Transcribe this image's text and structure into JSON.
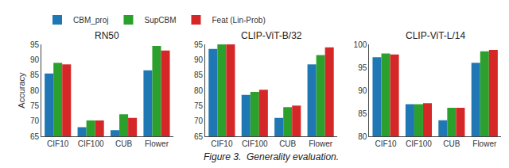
{
  "chart_data": [
    {
      "type": "bar",
      "title": "RN50",
      "categories": [
        "CIF10",
        "CIF100",
        "CUB",
        "Flower"
      ],
      "series": [
        {
          "name": "CBM_proj",
          "color": "#1f77b4",
          "values": [
            85.5,
            68.0,
            67.0,
            86.5
          ]
        },
        {
          "name": "SupCBM",
          "color": "#2ca02c",
          "values": [
            89.0,
            70.2,
            72.2,
            94.5
          ]
        },
        {
          "name": "Feat (Lin-Prob)",
          "color": "#d62728",
          "values": [
            88.5,
            70.2,
            71.0,
            93.0
          ]
        }
      ],
      "ylim": [
        65,
        95
      ],
      "yticks": [
        65,
        70,
        75,
        80,
        85,
        90,
        95
      ],
      "ylabel": "Accuracy",
      "legend": "upper left",
      "grid": false
    },
    {
      "type": "bar",
      "title": "CLIP-ViT-B/32",
      "categories": [
        "CIF10",
        "CIF100",
        "CUB",
        "Flower"
      ],
      "series": [
        {
          "name": "CBM_proj",
          "color": "#1f77b4",
          "values": [
            93.5,
            78.5,
            71.0,
            88.5
          ]
        },
        {
          "name": "SupCBM",
          "color": "#2ca02c",
          "values": [
            95.0,
            79.5,
            74.5,
            91.5
          ]
        },
        {
          "name": "Feat (Lin-Prob)",
          "color": "#d62728",
          "values": [
            95.0,
            80.2,
            75.0,
            94.0
          ]
        }
      ],
      "ylim": [
        65,
        95
      ],
      "yticks": [
        65,
        70,
        75,
        80,
        85,
        90,
        95
      ],
      "grid": false
    },
    {
      "type": "bar",
      "title": "CLIP-ViT-L/14",
      "categories": [
        "CIF10",
        "CIF100",
        "CUB",
        "Flower"
      ],
      "series": [
        {
          "name": "CBM_proj",
          "color": "#1f77b4",
          "values": [
            97.2,
            87.0,
            83.5,
            96.0
          ]
        },
        {
          "name": "SupCBM",
          "color": "#2ca02c",
          "values": [
            98.0,
            87.0,
            86.2,
            98.5
          ]
        },
        {
          "name": "Feat (Lin-Prob)",
          "color": "#d62728",
          "values": [
            97.8,
            87.2,
            86.2,
            98.8
          ]
        }
      ],
      "ylim": [
        80,
        100
      ],
      "yticks": [
        80,
        85,
        90,
        95,
        100
      ],
      "grid": false
    }
  ],
  "caption": "Figure 3.  Generality evaluation."
}
